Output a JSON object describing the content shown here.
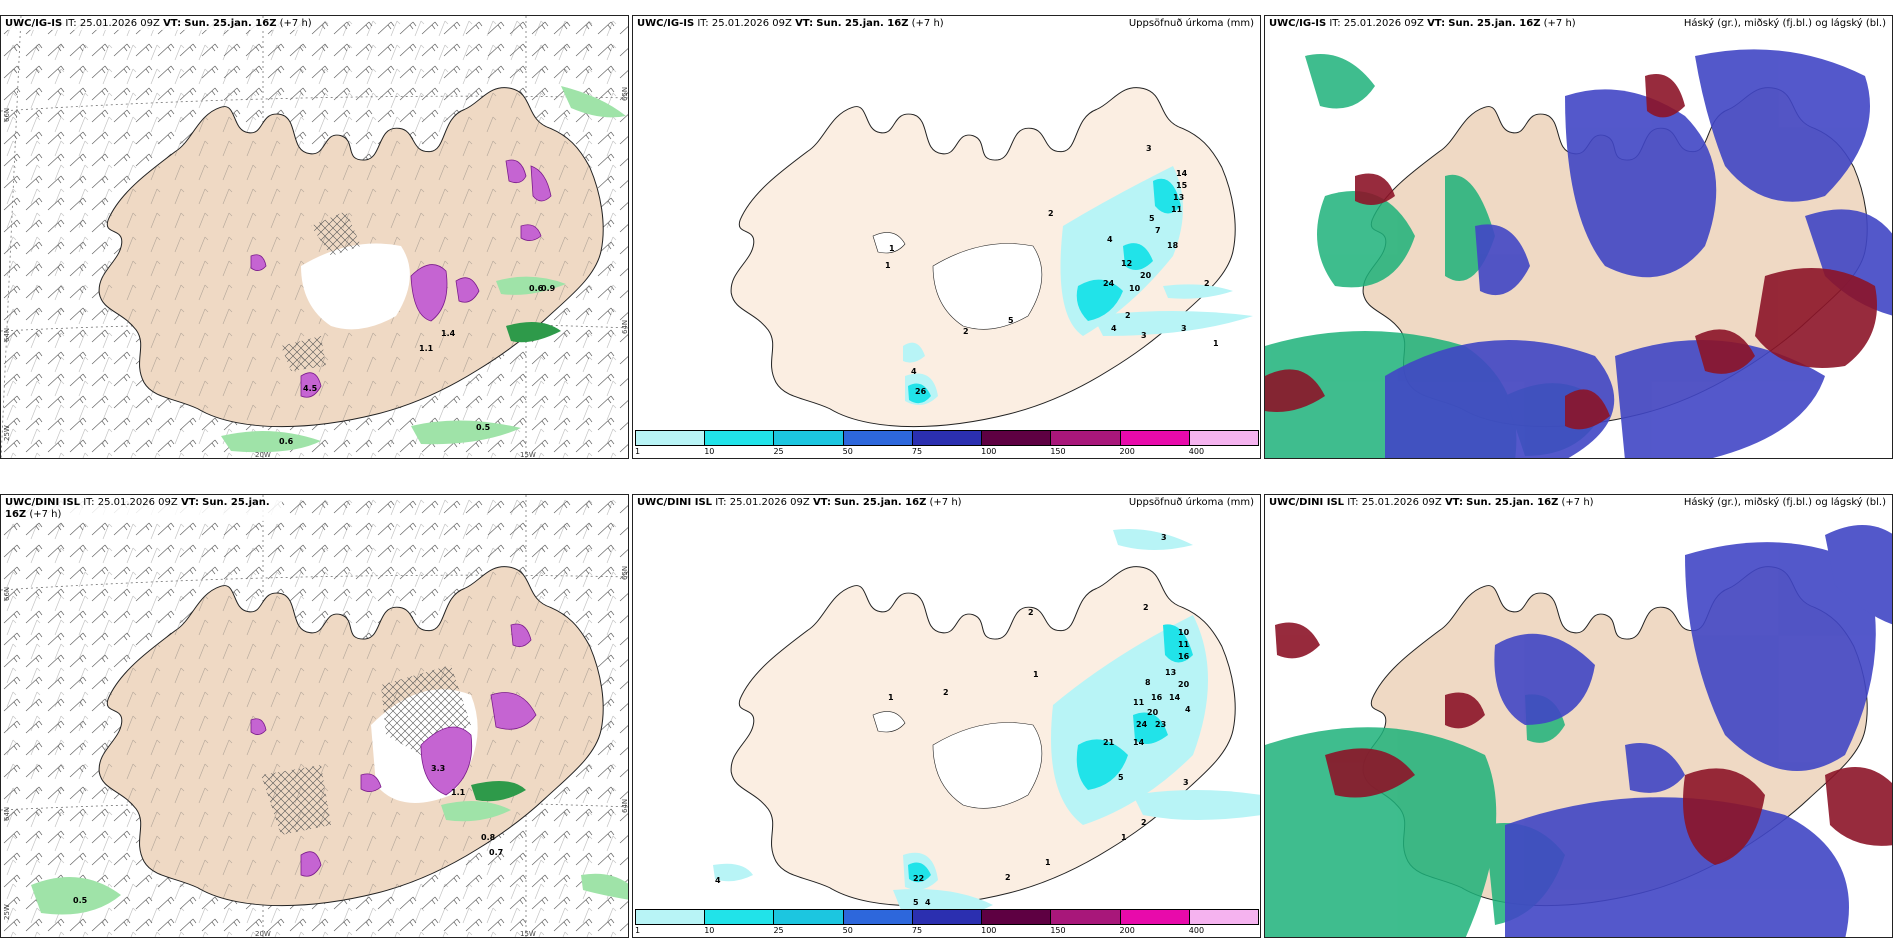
{
  "colors": {
    "land": "#efd9c4",
    "land_pale": "#fbeee2",
    "water": "#ffffff",
    "precip_light": "#b8f4f6",
    "precip_cyan": "#21e3e9",
    "snow_magenta": "#c564d2",
    "green_fill": "#2e9a4a",
    "cloud_blue": "#4146c5",
    "cloud_red": "#8c1428",
    "cloud_green": "#1db27a"
  },
  "panels": [
    {
      "model": "UWC/IG-IS",
      "it_label": "IT:",
      "issue_time": "25.01.2026 09Z",
      "vt_label": "VT:",
      "valid_time": "Sun. 25.jan. 16Z",
      "lead": "(+7 h)",
      "right_title": "",
      "lat_labels": [
        "66N",
        "64N",
        "25W"
      ],
      "lon_labels": [
        "20W",
        "15W"
      ],
      "right_lat_labels": [
        "65N",
        "64N"
      ],
      "labels": [
        "0.6",
        "0.5",
        "0.9",
        "0.6",
        "1.1",
        "1.4",
        "4.5"
      ]
    },
    {
      "model": "UWC/IG-IS",
      "it_label": "IT:",
      "issue_time": "25.01.2026 09Z",
      "vt_label": "VT:",
      "valid_time": "Sun. 25.jan. 16Z",
      "lead": "(+7 h)",
      "right_title": "Uppsöfnuð úrkoma (mm)",
      "labels": [
        "3",
        "14",
        "15",
        "13",
        "11",
        "5",
        "7",
        "18",
        "2",
        "4",
        "12",
        "20",
        "10",
        "24",
        "2",
        "2",
        "3",
        "4",
        "3",
        "1",
        "5",
        "2",
        "1",
        "1",
        "4",
        "26"
      ]
    },
    {
      "model": "UWC/IG-IS",
      "it_label": "IT:",
      "issue_time": "25.01.2026 09Z",
      "vt_label": "VT:",
      "valid_time": "Sun. 25.jan. 16Z",
      "lead": "(+7 h)",
      "right_title": "Háský (gr.), miðský (fj.bl.) og lágský (bl.)"
    },
    {
      "model": "UWC/DINI ISL",
      "it_label": "IT:",
      "issue_time": "25.01.2026 09Z",
      "vt_label": "VT:",
      "valid_time": "Sun. 25.jan. 16Z",
      "lead": "(+7 h)",
      "right_title": "",
      "lat_labels": [
        "66N",
        "64N",
        "25W"
      ],
      "lon_labels": [
        "20W",
        "15W"
      ],
      "right_lat_labels": [
        "65N",
        "64N"
      ],
      "labels": [
        "0.8",
        "0.7",
        "0.5",
        "3.3",
        "1.1"
      ]
    },
    {
      "model": "UWC/DINI ISL",
      "it_label": "IT:",
      "issue_time": "25.01.2026 09Z",
      "vt_label": "VT:",
      "valid_time": "Sun. 25.jan. 16Z",
      "lead": "(+7 h)",
      "right_title": "Uppsöfnuð úrkoma (mm)",
      "labels": [
        "3",
        "2",
        "10",
        "11",
        "16",
        "13",
        "8",
        "20",
        "14",
        "4",
        "16",
        "11",
        "20",
        "24",
        "23",
        "21",
        "14",
        "5",
        "3",
        "2",
        "1",
        "2",
        "1",
        "2",
        "1",
        "22",
        "5",
        "4",
        "1",
        "4",
        "2"
      ]
    },
    {
      "model": "UWC/DINI ISL",
      "it_label": "IT:",
      "issue_time": "25.01.2026 09Z",
      "vt_label": "VT:",
      "valid_time": "Sun. 25.jan. 16Z",
      "lead": "(+7 h)",
      "right_title": "Háský (gr.), miðský (fj.bl.) og lágský (bl.)"
    }
  ],
  "colorbar": {
    "ticks": [
      "1",
      "10",
      "25",
      "50",
      "75",
      "100",
      "150",
      "200",
      "400"
    ],
    "colors": [
      "#b8f4f6",
      "#21e3e9",
      "#1cc6e0",
      "#2d67dc",
      "#2b2fb0",
      "#5e0042",
      "#a8177a",
      "#e80aab",
      "#f5b3ef"
    ]
  }
}
